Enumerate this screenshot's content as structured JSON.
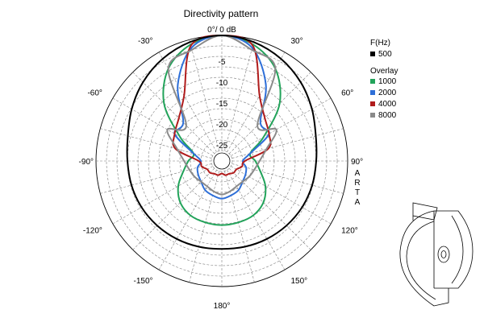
{
  "chart_data": {
    "type": "polar",
    "title": "Directivity pattern",
    "top_label": "0°/ 0 dB",
    "radial_ticks": [
      "-5",
      "-10",
      "-15",
      "-20",
      "-25"
    ],
    "radial_range_db": [
      -30,
      0
    ],
    "radial_step_db": 2.5,
    "angle_ticks": [
      {
        "deg": -30,
        "label": "-30°"
      },
      {
        "deg": 30,
        "label": "30°"
      },
      {
        "deg": -60,
        "label": "-60°"
      },
      {
        "deg": 60,
        "label": "60°"
      },
      {
        "deg": -90,
        "label": "-90°"
      },
      {
        "deg": 90,
        "label": "90°"
      },
      {
        "deg": -120,
        "label": "-120°"
      },
      {
        "deg": 120,
        "label": "120°"
      },
      {
        "deg": -150,
        "label": "-150°"
      },
      {
        "deg": 150,
        "label": "150°"
      },
      {
        "deg": 180,
        "label": "180°"
      }
    ],
    "vertical_text": "ARTA",
    "legend_title": "F(Hz)",
    "overlay_title": "Overlay",
    "angles_deg": [
      0,
      15,
      30,
      45,
      60,
      75,
      90,
      105,
      120,
      135,
      150,
      165,
      180,
      195,
      210,
      225,
      240,
      255,
      270,
      285,
      300,
      315,
      330,
      345
    ],
    "series": [
      {
        "name": "500",
        "color": "#000000",
        "db": [
          0,
          -0.6,
          -1.8,
          -3.4,
          -5.2,
          -6.8,
          -7.5,
          -7.7,
          -7.9,
          -8.2,
          -8.5,
          -8.8,
          -9,
          -8.8,
          -8.5,
          -8.2,
          -7.9,
          -7.7,
          -7.5,
          -6.8,
          -5.2,
          -3.4,
          -1.8,
          -0.6
        ]
      },
      {
        "name": "1000",
        "color": "#22a35a",
        "db": [
          0,
          -1.2,
          -4.5,
          -10.5,
          -18.5,
          -23,
          -22,
          -20.5,
          -18,
          -16,
          -15,
          -14.8,
          -14.7,
          -14.8,
          -15,
          -16,
          -18,
          -20.5,
          -22,
          -23,
          -18.5,
          -10.5,
          -4.5,
          -1.2
        ]
      },
      {
        "name": "2000",
        "color": "#2e6fd8",
        "db": [
          0,
          -2,
          -9,
          -17,
          -17,
          -23,
          -25,
          -24,
          -23.5,
          -23,
          -22,
          -21.5,
          -21,
          -21.5,
          -22,
          -23,
          -23.5,
          -24,
          -25,
          -23,
          -17,
          -17,
          -9,
          -2
        ]
      },
      {
        "name": "4000",
        "color": "#b01c1c",
        "db": [
          0,
          -1.5,
          -12,
          -15.5,
          -17,
          -18.5,
          -24.5,
          -25,
          -26,
          -26,
          -26.5,
          -26.5,
          -27,
          -26.5,
          -26.5,
          -26,
          -26,
          -25,
          -24.5,
          -18.5,
          -17,
          -15.5,
          -12,
          -1.5
        ]
      },
      {
        "name": "8000",
        "color": "#8a8a8a",
        "db": [
          0,
          -2.5,
          -4.5,
          -18,
          -15,
          -19,
          -21,
          -22,
          -22.5,
          -23,
          -23,
          -22.5,
          -22,
          -22.5,
          -23,
          -23,
          -22.5,
          -22,
          -21,
          -19,
          -15,
          -18,
          -4.5,
          -2.5
        ]
      }
    ]
  }
}
